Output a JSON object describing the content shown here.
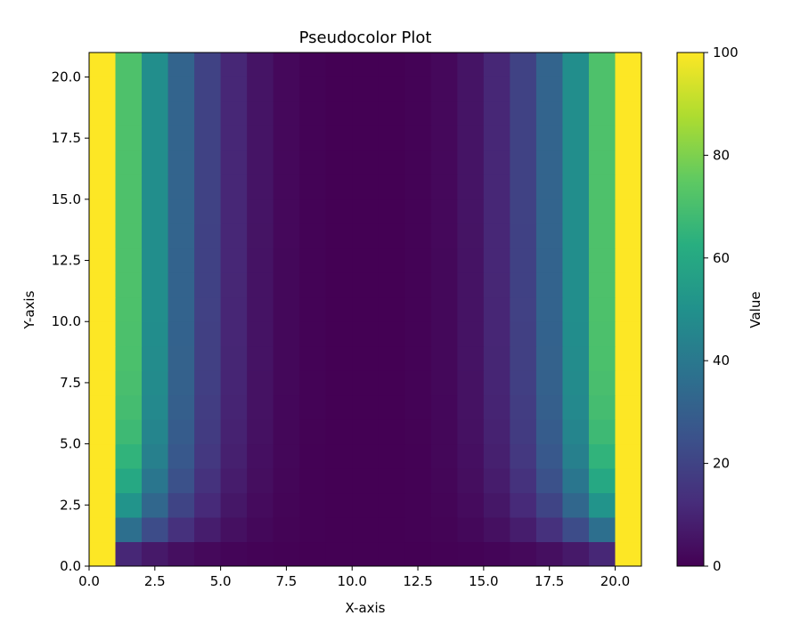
{
  "chart_data": {
    "type": "heatmap",
    "title": "Pseudocolor Plot",
    "xlabel": "X-axis",
    "ylabel": "Y-axis",
    "xlim": [
      0,
      21
    ],
    "ylim": [
      0,
      21
    ],
    "x_ticks": [
      "0.0",
      "2.5",
      "5.0",
      "7.5",
      "10.0",
      "12.5",
      "15.0",
      "17.5",
      "20.0"
    ],
    "y_ticks": [
      "0.0",
      "2.5",
      "5.0",
      "7.5",
      "10.0",
      "12.5",
      "15.0",
      "17.5",
      "20.0"
    ],
    "colorbar": {
      "label": "Value",
      "range": [
        0,
        100
      ],
      "ticks": [
        "0",
        "20",
        "40",
        "60",
        "80",
        "100"
      ],
      "colormap": "viridis"
    },
    "grid_size": [
      21,
      21
    ],
    "value_rule": "cell value ≈ 100·((x−10)/10)^2·(1−0.6·0.97^(y)·...) — symmetric U-shape across columns, increasing with row",
    "grid": "computed"
  }
}
